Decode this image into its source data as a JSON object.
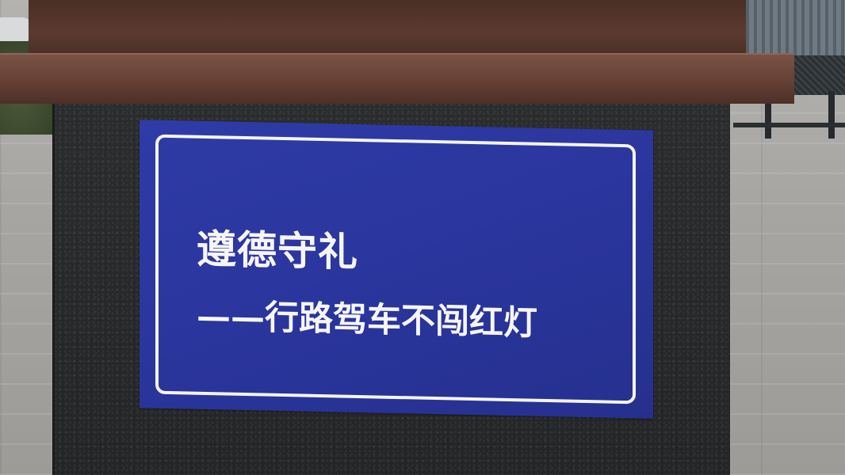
{
  "sign": {
    "title": "遵德守礼",
    "subtitle": "——行路驾车不闯红灯"
  },
  "colors": {
    "sign_blue": "#2a359c",
    "sign_text": "#f6f6f8",
    "pillar": "#232526",
    "cap": "#6a4438"
  }
}
